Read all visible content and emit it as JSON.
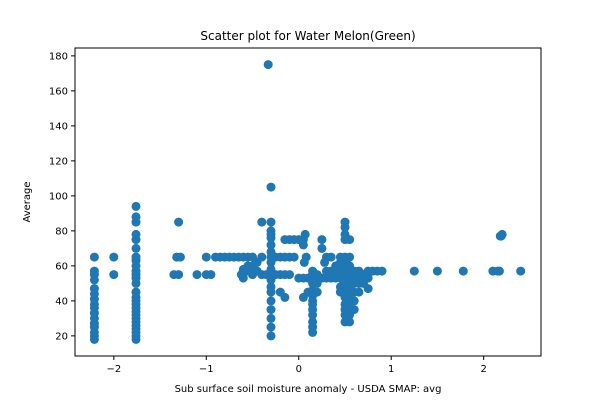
{
  "chart_data": {
    "type": "scatter",
    "title": "Scatter plot for Water Melon(Green)",
    "xlabel": "Sub surface soil moisture anomaly - USDA SMAP: avg",
    "ylabel": "Average",
    "xlim": [
      -2.42,
      2.62
    ],
    "ylim": [
      8.5,
      184.5
    ],
    "xticks": [
      -2,
      -1,
      0,
      1,
      2
    ],
    "xtick_labels": [
      "−2",
      "−1",
      "0",
      "1",
      "2"
    ],
    "yticks": [
      20,
      40,
      60,
      80,
      100,
      120,
      140,
      160,
      180
    ],
    "ytick_labels": [
      "20",
      "40",
      "60",
      "80",
      "100",
      "120",
      "140",
      "160",
      "180"
    ],
    "grid": false,
    "marker_color": "#1f77b4",
    "points": [
      [
        -2.21,
        18
      ],
      [
        -2.21,
        20
      ],
      [
        -2.21,
        22
      ],
      [
        -2.21,
        25
      ],
      [
        -2.21,
        27
      ],
      [
        -2.21,
        30
      ],
      [
        -2.21,
        33
      ],
      [
        -2.21,
        36
      ],
      [
        -2.21,
        38
      ],
      [
        -2.21,
        41
      ],
      [
        -2.21,
        44
      ],
      [
        -2.21,
        47
      ],
      [
        -2.21,
        52
      ],
      [
        -2.21,
        55
      ],
      [
        -2.21,
        57
      ],
      [
        -2.21,
        65
      ],
      [
        -2.0,
        55
      ],
      [
        -2.0,
        65
      ],
      [
        -1.76,
        18
      ],
      [
        -1.76,
        20
      ],
      [
        -1.76,
        22
      ],
      [
        -1.76,
        24
      ],
      [
        -1.76,
        26
      ],
      [
        -1.76,
        28
      ],
      [
        -1.76,
        30
      ],
      [
        -1.76,
        32
      ],
      [
        -1.76,
        34
      ],
      [
        -1.76,
        36
      ],
      [
        -1.76,
        38
      ],
      [
        -1.76,
        40
      ],
      [
        -1.76,
        42
      ],
      [
        -1.76,
        45
      ],
      [
        -1.76,
        50
      ],
      [
        -1.76,
        53
      ],
      [
        -1.76,
        55
      ],
      [
        -1.76,
        57
      ],
      [
        -1.76,
        60
      ],
      [
        -1.76,
        63
      ],
      [
        -1.76,
        65
      ],
      [
        -1.76,
        70
      ],
      [
        -1.76,
        75
      ],
      [
        -1.76,
        78
      ],
      [
        -1.76,
        85
      ],
      [
        -1.76,
        88
      ],
      [
        -1.76,
        94
      ],
      [
        -1.35,
        55
      ],
      [
        -1.3,
        55
      ],
      [
        -1.32,
        65
      ],
      [
        -1.28,
        65
      ],
      [
        -1.3,
        85
      ],
      [
        -1.1,
        55
      ],
      [
        -1.0,
        55
      ],
      [
        -0.95,
        55
      ],
      [
        -1.0,
        65
      ],
      [
        -0.9,
        65
      ],
      [
        -0.85,
        65
      ],
      [
        -0.8,
        65
      ],
      [
        -0.75,
        65
      ],
      [
        -0.7,
        65
      ],
      [
        -0.65,
        65
      ],
      [
        -0.6,
        65
      ],
      [
        -0.55,
        65
      ],
      [
        -0.5,
        65
      ],
      [
        -0.4,
        65
      ],
      [
        -0.3,
        65
      ],
      [
        -0.25,
        65
      ],
      [
        -0.2,
        65
      ],
      [
        -0.15,
        65
      ],
      [
        -0.1,
        65
      ],
      [
        -0.05,
        65
      ],
      [
        -0.4,
        85
      ],
      [
        -0.62,
        55
      ],
      [
        -0.6,
        53
      ],
      [
        -0.55,
        57
      ],
      [
        -0.5,
        55
      ],
      [
        -0.45,
        57
      ],
      [
        -0.4,
        55
      ],
      [
        -0.35,
        55
      ],
      [
        -0.3,
        55
      ],
      [
        -0.25,
        55
      ],
      [
        -0.2,
        55
      ],
      [
        -0.15,
        55
      ],
      [
        -0.1,
        55
      ],
      [
        -0.5,
        60
      ],
      [
        -0.45,
        62
      ],
      [
        -0.6,
        58
      ],
      [
        -0.55,
        60
      ],
      [
        -0.33,
        175
      ],
      [
        -0.3,
        105
      ],
      [
        -0.3,
        20
      ],
      [
        -0.3,
        25
      ],
      [
        -0.3,
        30
      ],
      [
        -0.3,
        35
      ],
      [
        -0.3,
        40
      ],
      [
        -0.3,
        45
      ],
      [
        -0.3,
        48
      ],
      [
        -0.3,
        52
      ],
      [
        -0.3,
        58
      ],
      [
        -0.3,
        62
      ],
      [
        -0.3,
        68
      ],
      [
        -0.3,
        72
      ],
      [
        -0.3,
        76
      ],
      [
        -0.3,
        78
      ],
      [
        -0.3,
        80
      ],
      [
        -0.3,
        85
      ],
      [
        -0.15,
        42
      ],
      [
        -0.2,
        45
      ],
      [
        -0.15,
        75
      ],
      [
        -0.1,
        75
      ],
      [
        -0.05,
        75
      ],
      [
        0.0,
        53
      ],
      [
        0.05,
        53
      ],
      [
        0.1,
        53
      ],
      [
        0.15,
        53
      ],
      [
        0.2,
        53
      ],
      [
        0.25,
        53
      ],
      [
        0.3,
        53
      ],
      [
        0.35,
        53
      ],
      [
        0.4,
        53
      ],
      [
        0.45,
        53
      ],
      [
        0.5,
        53
      ],
      [
        0.55,
        53
      ],
      [
        0.6,
        53
      ],
      [
        0.65,
        53
      ],
      [
        0.7,
        53
      ],
      [
        0.75,
        53
      ],
      [
        0.0,
        75
      ],
      [
        0.05,
        75
      ],
      [
        0.07,
        78
      ],
      [
        0.05,
        72
      ],
      [
        0.08,
        65
      ],
      [
        0.06,
        62
      ],
      [
        0.05,
        42
      ],
      [
        0.1,
        45
      ],
      [
        0.15,
        22
      ],
      [
        0.15,
        25
      ],
      [
        0.15,
        28
      ],
      [
        0.15,
        32
      ],
      [
        0.15,
        35
      ],
      [
        0.15,
        38
      ],
      [
        0.15,
        40
      ],
      [
        0.15,
        43
      ],
      [
        0.15,
        46
      ],
      [
        0.15,
        50
      ],
      [
        0.15,
        55
      ],
      [
        0.15,
        57
      ],
      [
        0.2,
        50
      ],
      [
        0.2,
        55
      ],
      [
        0.2,
        45
      ],
      [
        0.25,
        75
      ],
      [
        0.25,
        70
      ],
      [
        0.28,
        62
      ],
      [
        0.3,
        65
      ],
      [
        0.35,
        65
      ],
      [
        0.3,
        57
      ],
      [
        0.35,
        57
      ],
      [
        0.4,
        60
      ],
      [
        0.4,
        55
      ],
      [
        0.45,
        45
      ],
      [
        0.45,
        48
      ],
      [
        0.45,
        55
      ],
      [
        0.45,
        58
      ],
      [
        0.45,
        62
      ],
      [
        0.45,
        65
      ],
      [
        0.5,
        28
      ],
      [
        0.5,
        32
      ],
      [
        0.5,
        35
      ],
      [
        0.5,
        38
      ],
      [
        0.5,
        42
      ],
      [
        0.5,
        45
      ],
      [
        0.5,
        48
      ],
      [
        0.5,
        50
      ],
      [
        0.5,
        55
      ],
      [
        0.5,
        58
      ],
      [
        0.5,
        62
      ],
      [
        0.5,
        65
      ],
      [
        0.5,
        75
      ],
      [
        0.5,
        78
      ],
      [
        0.5,
        82
      ],
      [
        0.5,
        85
      ],
      [
        0.55,
        28
      ],
      [
        0.55,
        32
      ],
      [
        0.55,
        36
      ],
      [
        0.55,
        40
      ],
      [
        0.55,
        44
      ],
      [
        0.55,
        48
      ],
      [
        0.55,
        52
      ],
      [
        0.55,
        56
      ],
      [
        0.55,
        60
      ],
      [
        0.55,
        65
      ],
      [
        0.55,
        75
      ],
      [
        0.6,
        35
      ],
      [
        0.6,
        40
      ],
      [
        0.6,
        45
      ],
      [
        0.6,
        50
      ],
      [
        0.6,
        55
      ],
      [
        0.6,
        57
      ],
      [
        0.65,
        45
      ],
      [
        0.65,
        50
      ],
      [
        0.65,
        57
      ],
      [
        0.7,
        50
      ],
      [
        0.7,
        55
      ],
      [
        0.75,
        57
      ],
      [
        0.75,
        47
      ],
      [
        0.8,
        57
      ],
      [
        0.85,
        57
      ],
      [
        0.9,
        57
      ],
      [
        1.25,
        57
      ],
      [
        1.5,
        57
      ],
      [
        1.78,
        57
      ],
      [
        2.1,
        57
      ],
      [
        2.15,
        57
      ],
      [
        2.17,
        57
      ],
      [
        2.18,
        77
      ],
      [
        2.19,
        77
      ],
      [
        2.2,
        78
      ],
      [
        2.4,
        57
      ]
    ]
  }
}
